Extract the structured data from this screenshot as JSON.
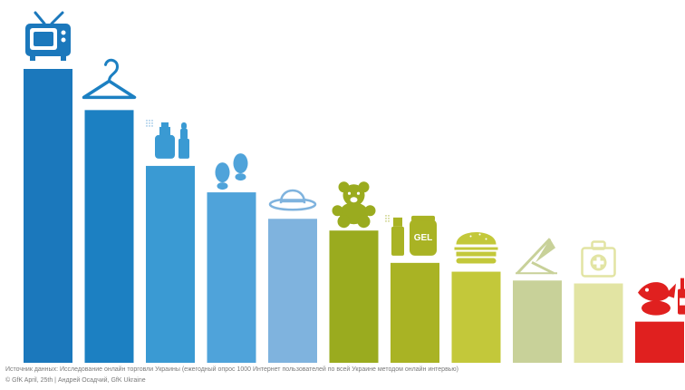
{
  "chart_data": {
    "type": "bar",
    "categories": [
      {
        "icon": "tv-icon",
        "color": "#1b78bc"
      },
      {
        "icon": "hanger-icon",
        "color": "#1c80c2"
      },
      {
        "icon": "cosmetics-icon",
        "color": "#3a9ad3"
      },
      {
        "icon": "footprints-icon",
        "color": "#4fa3da"
      },
      {
        "icon": "hat-icon",
        "color": "#7fb3de"
      },
      {
        "icon": "teddy-bear-icon",
        "color": "#9aab1f"
      },
      {
        "icon": "gel-spray-icon",
        "color": "#a9b324"
      },
      {
        "icon": "burger-icon",
        "color": "#c3c83a"
      },
      {
        "icon": "deck-chair-icon",
        "color": "#c8d199"
      },
      {
        "icon": "first-aid-kit-icon",
        "color": "#e2e4a3"
      },
      {
        "icon": "food-drink-icon",
        "color": "#e0201f"
      }
    ],
    "values": [
      100,
      86,
      67,
      58,
      49,
      45,
      34,
      31,
      28,
      27,
      14
    ],
    "ylim": [
      0,
      100
    ]
  },
  "footer": {
    "source_text": "Источник данных: Исследование онлайн торговли Украины (ежегодный опрос 1000 Интернет пользователей по всей Украине методом онлайн интервью)",
    "credit_text": "© GfK April, 25th | Андрей Осадчий, GfK Ukraine"
  }
}
